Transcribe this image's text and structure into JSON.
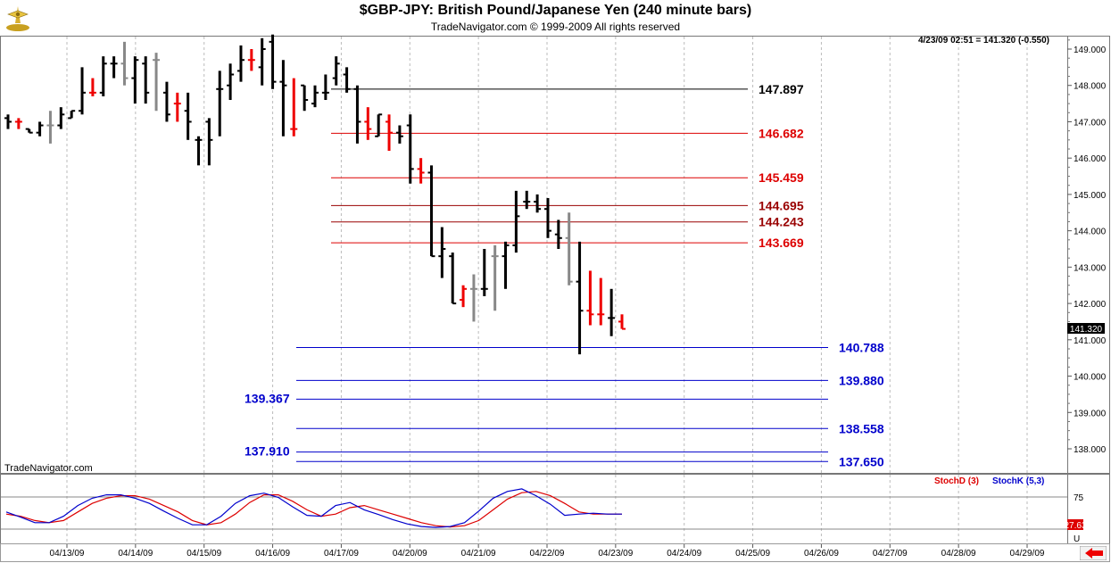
{
  "header": {
    "title": "$GBP-JPY:  British Pound/Japanese Yen  (240 minute bars)",
    "copyright": "TradeNavigator.com © 1999-2009 All rights reserved",
    "watermark": "TradeNavigator.com",
    "quote": "4/23/09 02:51 = 141.320 (-0.550)"
  },
  "colors": {
    "up_bar": "#000000",
    "down_bar": "#ee0000",
    "neutral_bar": "#888888",
    "fib_upper": "#dd0000",
    "fib_lower": "#0000cc",
    "stoch_d": "#dd0000",
    "stoch_k": "#0000cc"
  },
  "chart_data": [
    {
      "type": "ohlc",
      "title": "$GBP-JPY:  British Pound/Japanese Yen  (240 minute bars)",
      "ylim": [
        137.5,
        149.3
      ],
      "y_ticks": [
        "138.000",
        "139.000",
        "140.000",
        "141.000",
        "142.000",
        "143.000",
        "144.000",
        "145.000",
        "146.000",
        "147.000",
        "148.000",
        "149.000"
      ],
      "x_ticks": [
        "04/13/09",
        "04/14/09",
        "04/15/09",
        "04/16/09",
        "04/17/09",
        "04/20/09",
        "04/21/09",
        "04/22/09",
        "04/23/09",
        "04/24/09",
        "04/25/09",
        "04/26/09",
        "04/27/09",
        "04/28/09",
        "04/29/09"
      ],
      "last_price": "141.320",
      "bars": [
        {
          "o": 147.1,
          "h": 147.2,
          "l": 146.8,
          "c": 147.0,
          "k": "up"
        },
        {
          "o": 147.0,
          "h": 147.1,
          "l": 146.8,
          "c": 147.0,
          "k": "down"
        },
        {
          "o": 146.8,
          "h": 146.8,
          "l": 146.7,
          "c": 146.7,
          "k": "up"
        },
        {
          "o": 146.7,
          "h": 147.0,
          "l": 146.6,
          "c": 146.9,
          "k": "up"
        },
        {
          "o": 146.9,
          "h": 147.3,
          "l": 146.4,
          "c": 146.9,
          "k": "neutral"
        },
        {
          "o": 146.9,
          "h": 147.4,
          "l": 146.8,
          "c": 147.2,
          "k": "up"
        },
        {
          "o": 147.1,
          "h": 147.3,
          "l": 147.1,
          "c": 147.3,
          "k": "up"
        },
        {
          "o": 147.3,
          "h": 148.5,
          "l": 147.2,
          "c": 147.8,
          "k": "up"
        },
        {
          "o": 147.8,
          "h": 148.2,
          "l": 147.7,
          "c": 147.8,
          "k": "down"
        },
        {
          "o": 147.8,
          "h": 148.8,
          "l": 147.7,
          "c": 148.6,
          "k": "up"
        },
        {
          "o": 148.6,
          "h": 148.8,
          "l": 148.2,
          "c": 148.6,
          "k": "up"
        },
        {
          "o": 148.6,
          "h": 149.2,
          "l": 148.0,
          "c": 148.2,
          "k": "neutral"
        },
        {
          "o": 148.2,
          "h": 148.8,
          "l": 147.5,
          "c": 148.7,
          "k": "up"
        },
        {
          "o": 148.6,
          "h": 148.8,
          "l": 147.5,
          "c": 147.8,
          "k": "up"
        },
        {
          "o": 148.7,
          "h": 148.9,
          "l": 147.3,
          "c": 148.7,
          "k": "neutral"
        },
        {
          "o": 147.8,
          "h": 148.1,
          "l": 147.0,
          "c": 147.2,
          "k": "up"
        },
        {
          "o": 147.5,
          "h": 147.8,
          "l": 147.0,
          "c": 147.5,
          "k": "down"
        },
        {
          "o": 147.3,
          "h": 147.8,
          "l": 146.5,
          "c": 147.0,
          "k": "up"
        },
        {
          "o": 146.5,
          "h": 146.6,
          "l": 145.8,
          "c": 146.5,
          "k": "up"
        },
        {
          "o": 147.0,
          "h": 147.1,
          "l": 145.8,
          "c": 146.5,
          "k": "up"
        },
        {
          "o": 147.9,
          "h": 148.4,
          "l": 146.6,
          "c": 147.9,
          "k": "up"
        },
        {
          "o": 148.0,
          "h": 148.6,
          "l": 147.6,
          "c": 148.3,
          "k": "up"
        },
        {
          "o": 148.4,
          "h": 149.1,
          "l": 148.1,
          "c": 148.7,
          "k": "up"
        },
        {
          "o": 148.7,
          "h": 149.0,
          "l": 148.4,
          "c": 148.7,
          "k": "down"
        },
        {
          "o": 148.5,
          "h": 149.3,
          "l": 148.0,
          "c": 149.0,
          "k": "up"
        },
        {
          "o": 149.2,
          "h": 149.4,
          "l": 147.9,
          "c": 148.1,
          "k": "up"
        },
        {
          "o": 148.1,
          "h": 148.7,
          "l": 146.6,
          "c": 148.0,
          "k": "up"
        },
        {
          "o": 146.8,
          "h": 148.2,
          "l": 146.6,
          "c": 146.8,
          "k": "down"
        },
        {
          "o": 148.0,
          "h": 148.0,
          "l": 147.3,
          "c": 147.6,
          "k": "up"
        },
        {
          "o": 147.5,
          "h": 148.0,
          "l": 147.4,
          "c": 147.8,
          "k": "up"
        },
        {
          "o": 147.8,
          "h": 148.3,
          "l": 147.6,
          "c": 147.8,
          "k": "up"
        },
        {
          "o": 148.2,
          "h": 148.8,
          "l": 148.0,
          "c": 148.6,
          "k": "up"
        },
        {
          "o": 148.3,
          "h": 148.5,
          "l": 147.8,
          "c": 147.9,
          "k": "up"
        },
        {
          "o": 147.9,
          "h": 148.0,
          "l": 146.4,
          "c": 147.0,
          "k": "up"
        },
        {
          "o": 147.0,
          "h": 147.4,
          "l": 146.5,
          "c": 146.8,
          "k": "down"
        },
        {
          "o": 146.6,
          "h": 147.2,
          "l": 146.6,
          "c": 147.2,
          "k": "up"
        },
        {
          "o": 147.0,
          "h": 147.2,
          "l": 146.2,
          "c": 146.7,
          "k": "down"
        },
        {
          "o": 146.7,
          "h": 146.9,
          "l": 146.4,
          "c": 146.6,
          "k": "up"
        },
        {
          "o": 146.9,
          "h": 147.2,
          "l": 145.3,
          "c": 145.7,
          "k": "up"
        },
        {
          "o": 145.7,
          "h": 146.0,
          "l": 145.3,
          "c": 145.6,
          "k": "down"
        },
        {
          "o": 145.6,
          "h": 145.8,
          "l": 143.3,
          "c": 143.3,
          "k": "up"
        },
        {
          "o": 143.3,
          "h": 144.1,
          "l": 142.7,
          "c": 143.5,
          "k": "up"
        },
        {
          "o": 143.3,
          "h": 143.4,
          "l": 142.0,
          "c": 142.0,
          "k": "up"
        },
        {
          "o": 142.1,
          "h": 142.5,
          "l": 141.9,
          "c": 142.4,
          "k": "down"
        },
        {
          "o": 142.4,
          "h": 142.8,
          "l": 141.5,
          "c": 142.4,
          "k": "neutral"
        },
        {
          "o": 142.4,
          "h": 143.5,
          "l": 142.2,
          "c": 142.4,
          "k": "up"
        },
        {
          "o": 143.3,
          "h": 143.6,
          "l": 141.8,
          "c": 143.3,
          "k": "neutral"
        },
        {
          "o": 143.3,
          "h": 143.7,
          "l": 142.4,
          "c": 143.6,
          "k": "up"
        },
        {
          "o": 143.6,
          "h": 145.1,
          "l": 143.4,
          "c": 144.4,
          "k": "up"
        },
        {
          "o": 144.8,
          "h": 145.1,
          "l": 144.6,
          "c": 144.8,
          "k": "up"
        },
        {
          "o": 144.8,
          "h": 145.0,
          "l": 144.5,
          "c": 144.6,
          "k": "up"
        },
        {
          "o": 144.6,
          "h": 144.9,
          "l": 143.8,
          "c": 144.0,
          "k": "up"
        },
        {
          "o": 143.9,
          "h": 144.3,
          "l": 143.5,
          "c": 143.8,
          "k": "up"
        },
        {
          "o": 143.8,
          "h": 144.5,
          "l": 142.5,
          "c": 142.6,
          "k": "neutral"
        },
        {
          "o": 142.6,
          "h": 143.7,
          "l": 140.6,
          "c": 141.8,
          "k": "up"
        },
        {
          "o": 141.8,
          "h": 142.9,
          "l": 141.4,
          "c": 141.7,
          "k": "down"
        },
        {
          "o": 141.7,
          "h": 142.7,
          "l": 141.4,
          "c": 141.7,
          "k": "down"
        },
        {
          "o": 141.6,
          "h": 142.4,
          "l": 141.1,
          "c": 141.6,
          "k": "up"
        },
        {
          "o": 141.5,
          "h": 141.7,
          "l": 141.3,
          "c": 141.3,
          "k": "down"
        }
      ],
      "levels_upper": [
        {
          "value": 147.897,
          "label": "147.897",
          "color": "#000000"
        },
        {
          "value": 146.682,
          "label": "146.682",
          "color": "#dd0000"
        },
        {
          "value": 145.459,
          "label": "145.459",
          "color": "#dd0000"
        },
        {
          "value": 144.695,
          "label": "144.695",
          "color": "#990000"
        },
        {
          "value": 144.243,
          "label": "144.243",
          "color": "#990000"
        },
        {
          "value": 143.669,
          "label": "143.669",
          "color": "#dd0000"
        }
      ],
      "levels_lower": [
        {
          "value": 140.788,
          "label": "140.788",
          "side": "right"
        },
        {
          "value": 139.88,
          "label": "139.880",
          "side": "right"
        },
        {
          "value": 139.367,
          "label": "139.367",
          "side": "left"
        },
        {
          "value": 138.558,
          "label": "138.558",
          "side": "right"
        },
        {
          "value": 137.91,
          "label": "137.910",
          "side": "left"
        },
        {
          "value": 137.65,
          "label": "137.650",
          "side": "right"
        }
      ]
    },
    {
      "type": "line",
      "ylim": [
        0,
        100
      ],
      "y_ticks": [
        "75"
      ],
      "readout": "27.63",
      "bottom_label": "U",
      "series": [
        {
          "name": "StochD (3)",
          "values": [
            35,
            30,
            20,
            15,
            20,
            40,
            60,
            72,
            78,
            78,
            70,
            55,
            40,
            20,
            10,
            15,
            35,
            62,
            80,
            80,
            65,
            45,
            30,
            35,
            50,
            55,
            45,
            35,
            25,
            15,
            8,
            5,
            8,
            20,
            45,
            70,
            85,
            88,
            78,
            60,
            40,
            35,
            35,
            35
          ]
        },
        {
          "name": "StochK (5,3)",
          "values": [
            40,
            28,
            15,
            15,
            30,
            55,
            72,
            80,
            80,
            72,
            60,
            42,
            25,
            10,
            10,
            30,
            60,
            78,
            84,
            74,
            52,
            32,
            30,
            55,
            62,
            45,
            34,
            22,
            12,
            6,
            4,
            6,
            15,
            42,
            72,
            88,
            94,
            78,
            58,
            32,
            35,
            37,
            35,
            35
          ]
        }
      ]
    }
  ]
}
